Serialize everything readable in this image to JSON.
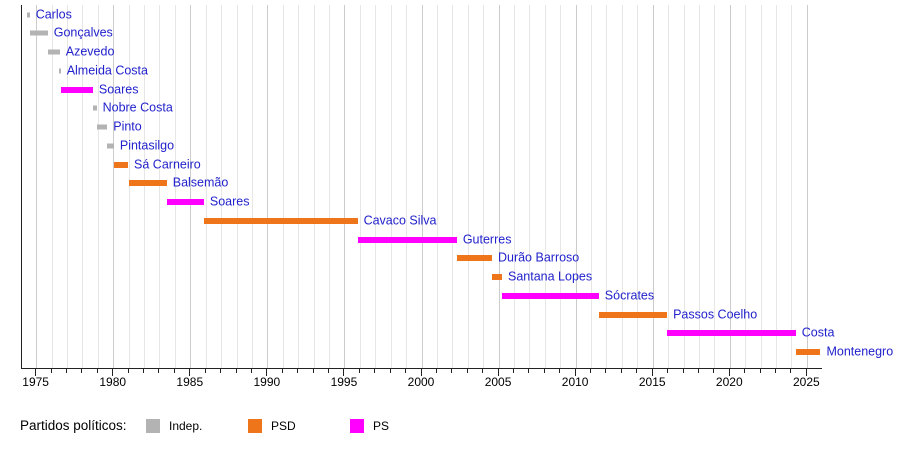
{
  "chart_data": {
    "type": "gantt",
    "title": "",
    "xlabel": "",
    "ylabel": "",
    "x_domain": [
      1974.05,
      2025.95
    ],
    "x_major_ticks": [
      1975,
      1980,
      1985,
      1990,
      1995,
      2000,
      2005,
      2010,
      2015,
      2020,
      2025
    ],
    "x_minor_tick_step": 1,
    "grid": true,
    "legend_position": "bottom",
    "legend_title": "Partidos políticos:",
    "parties": [
      {
        "id": "indep",
        "label": "Indep.",
        "color": "#b3b3b3"
      },
      {
        "id": "psd",
        "label": "PSD",
        "color": "#ef751a"
      },
      {
        "id": "ps",
        "label": "PS",
        "color": "#ff00ff"
      }
    ],
    "bars": [
      {
        "label": "Carlos",
        "party": "indep",
        "start": 1974.37,
        "end": 1974.55
      },
      {
        "label": "Gonçalves",
        "party": "indep",
        "start": 1974.55,
        "end": 1975.72
      },
      {
        "label": "Azevedo",
        "party": "indep",
        "start": 1975.72,
        "end": 1976.5
      },
      {
        "label": "Almeida Costa",
        "party": "indep",
        "start": 1976.44,
        "end": 1976.56
      },
      {
        "label": "Soares",
        "party": "ps",
        "start": 1976.56,
        "end": 1978.65
      },
      {
        "label": "Nobre Costa",
        "party": "indep",
        "start": 1978.66,
        "end": 1978.89
      },
      {
        "label": "Pinto",
        "party": "indep",
        "start": 1978.89,
        "end": 1979.58
      },
      {
        "label": "Pintasilgo",
        "party": "indep",
        "start": 1979.58,
        "end": 1980.01
      },
      {
        "label": "Sá Carneiro",
        "party": "psd",
        "start": 1980.01,
        "end": 1980.93
      },
      {
        "label": "Balsemão",
        "party": "psd",
        "start": 1981.02,
        "end": 1983.44
      },
      {
        "label": "Soares",
        "party": "ps",
        "start": 1983.44,
        "end": 1985.85
      },
      {
        "label": "Cavaco Silva",
        "party": "psd",
        "start": 1985.85,
        "end": 1995.82
      },
      {
        "label": "Guterres",
        "party": "ps",
        "start": 1995.82,
        "end": 2002.26
      },
      {
        "label": "Durão Barroso",
        "party": "psd",
        "start": 2002.26,
        "end": 2004.54
      },
      {
        "label": "Santana Lopes",
        "party": "psd",
        "start": 2004.54,
        "end": 2005.19
      },
      {
        "label": "Sócrates",
        "party": "ps",
        "start": 2005.19,
        "end": 2011.47
      },
      {
        "label": "Passos Coelho",
        "party": "psd",
        "start": 2011.47,
        "end": 2015.9
      },
      {
        "label": "Costa",
        "party": "ps",
        "start": 2015.9,
        "end": 2024.25
      },
      {
        "label": "Montenegro",
        "party": "psd",
        "start": 2024.25,
        "end": 2025.85
      }
    ]
  },
  "style": {
    "bar_label_color": "#2222cc",
    "axis_color": "#222222",
    "grid_minor_color": "#e6e6e6",
    "grid_major_color": "#cccccc",
    "tick_label_color": "#000000"
  }
}
